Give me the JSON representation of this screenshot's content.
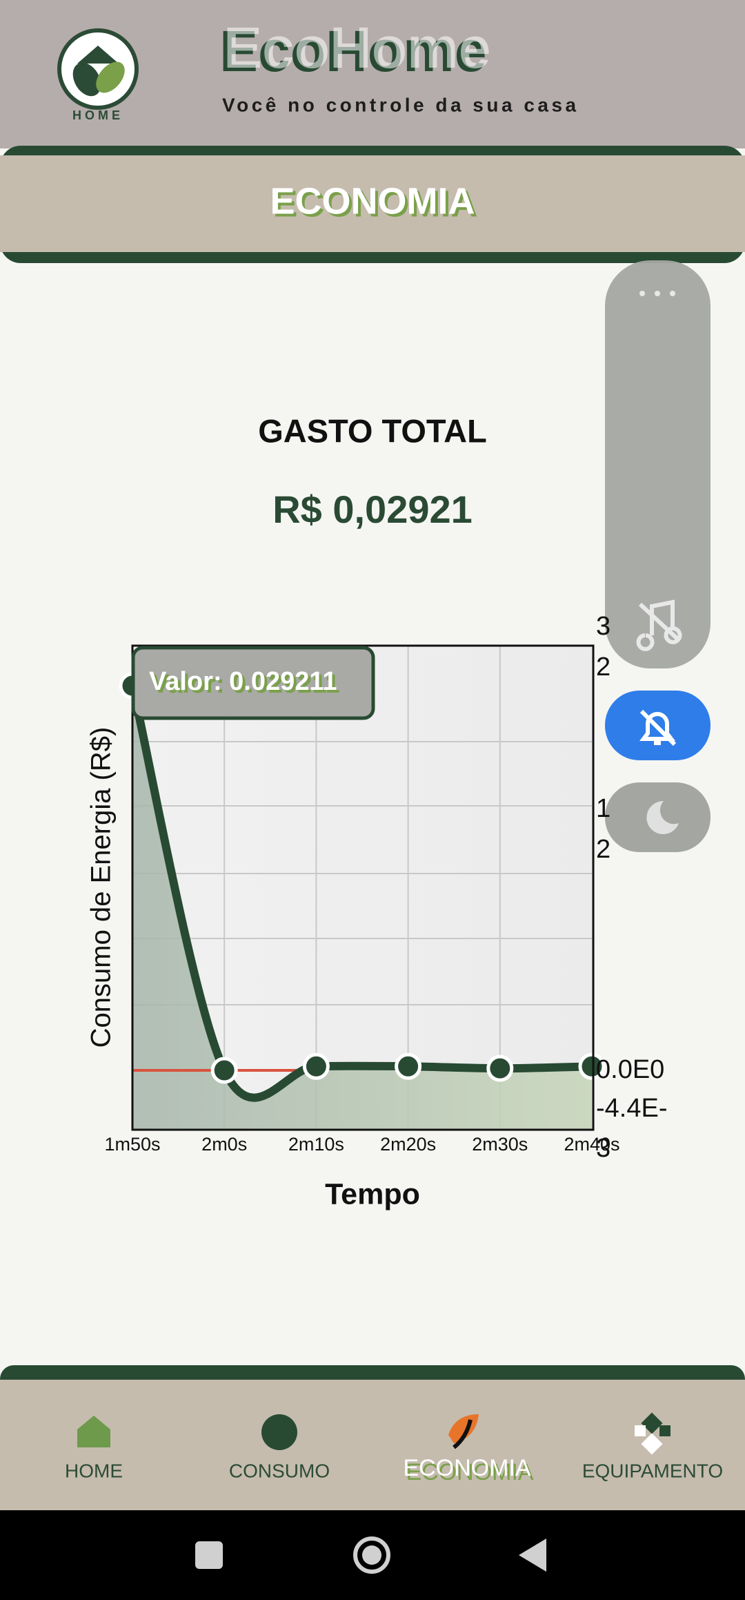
{
  "header": {
    "title": "EcoHome",
    "subtitle": "Você no controle da sua casa",
    "logo_text": "HOME"
  },
  "tab": {
    "title": "ECONOMIA"
  },
  "summary": {
    "label": "GASTO TOTAL",
    "value": "R$ 0,02921"
  },
  "chart_data": {
    "type": "line",
    "x_label": "Tempo",
    "y_label": "Consumo de Energia (R$)",
    "categories": [
      "1m50s",
      "2m0s",
      "2m10s",
      "2m20s",
      "2m30s",
      "2m40s"
    ],
    "values": [
      0.029211,
      0,
      0.0003,
      0.0003,
      0.00015,
      0.0003
    ],
    "color": "#284a33",
    "grid": true,
    "tooltip": "Valor: 0.029211",
    "y_tick_labels": [
      [
        "3",
        "2"
      ],
      [
        "1",
        "2"
      ],
      [
        "0.0E0"
      ],
      [
        "-4.4E-",
        "3"
      ]
    ]
  },
  "nav": {
    "items": [
      "HOME",
      "CONSUMO",
      "ECONOMIA",
      "EQUIPAMENTO"
    ]
  }
}
